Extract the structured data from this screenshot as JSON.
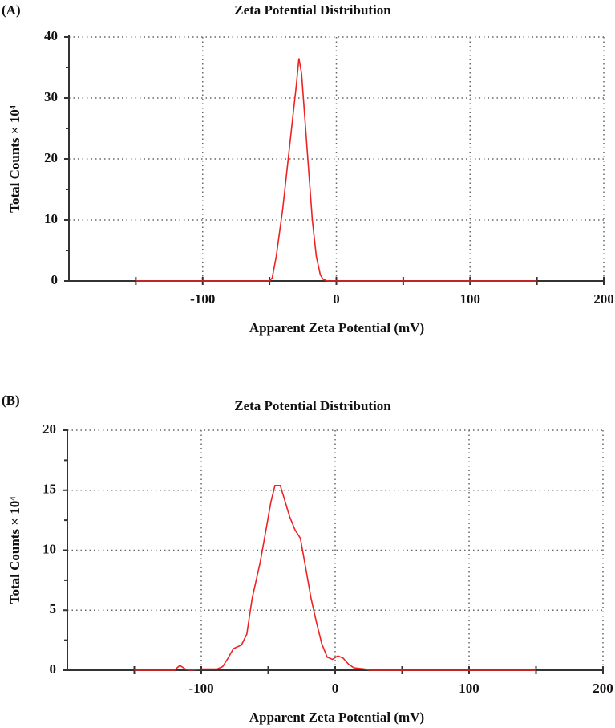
{
  "chart_data": [
    {
      "type": "line",
      "panel_label": "(A)",
      "title": "Zeta Potential Distribution",
      "x_label": "Apparent Zeta Potential (mV)",
      "y_label": "Total Counts × 10⁴",
      "x": [
        -150,
        -50,
        -48,
        -45,
        -40,
        -35,
        -30,
        -28,
        -26,
        -22,
        -18,
        -15,
        -12,
        -10,
        -7,
        150
      ],
      "values": [
        0,
        0,
        0.5,
        4,
        12,
        22,
        32,
        36.5,
        34,
        22,
        10,
        4,
        1,
        0.3,
        0,
        0
      ],
      "color": "#ee2222",
      "xlim": [
        -200,
        200
      ],
      "xticks": [
        -100,
        0,
        100,
        200
      ],
      "minor_xticks": [
        -150,
        -50,
        50,
        150
      ],
      "ylim": [
        0,
        40
      ],
      "yticks": [
        0,
        10,
        20,
        30,
        40
      ],
      "minor_yticks": [
        5,
        15,
        25,
        35
      ],
      "grid": true
    },
    {
      "type": "line",
      "panel_label": "(B)",
      "title": "Zeta Potential Distribution",
      "x_label": "Apparent Zeta Potential (mV)",
      "y_label": "Total Counts × 10⁴",
      "x": [
        -150,
        -120,
        -116,
        -112,
        -108,
        -100,
        -88,
        -84,
        -80,
        -76,
        -70,
        -66,
        -62,
        -56,
        -52,
        -48,
        -45,
        -41,
        -38,
        -34,
        -30,
        -26,
        -22,
        -18,
        -14,
        -10,
        -6,
        -2,
        2,
        6,
        10,
        14,
        22,
        26,
        150
      ],
      "values": [
        0,
        0,
        0.4,
        0.1,
        0,
        0.1,
        0.1,
        0.3,
        1,
        1.8,
        2.1,
        3,
        6,
        9,
        11.5,
        14,
        15.4,
        15.4,
        14.3,
        12.8,
        11.7,
        11,
        8.5,
        6,
        4,
        2.2,
        1.1,
        0.9,
        1.2,
        1,
        0.5,
        0.2,
        0.1,
        0,
        0
      ],
      "color": "#ee2222",
      "xlim": [
        -200,
        200
      ],
      "xticks": [
        -100,
        0,
        100,
        200
      ],
      "minor_xticks": [
        -150,
        -50,
        50,
        150
      ],
      "ylim": [
        0,
        20
      ],
      "yticks": [
        0,
        5,
        10,
        15,
        20
      ],
      "minor_yticks": [
        2.5,
        7.5,
        12.5,
        17.5
      ],
      "grid": true
    }
  ]
}
